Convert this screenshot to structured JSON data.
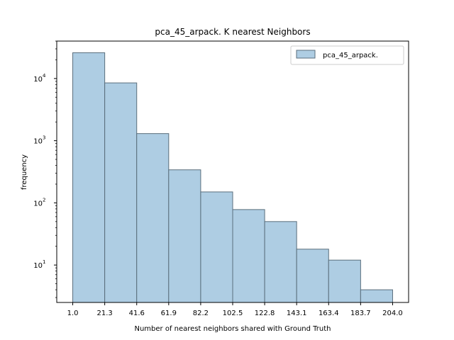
{
  "chart_data": {
    "type": "bar",
    "title": "pca_45_arpack. K nearest Neighbors",
    "xlabel": "Number of nearest neighbors shared with Ground Truth",
    "ylabel": "frequency",
    "yscale": "log",
    "ylim": [
      2.5,
      40000
    ],
    "xlim": [
      -9.15,
      214.15
    ],
    "x_ticks": [
      "1.0",
      "21.3",
      "41.6",
      "61.9",
      "82.2",
      "102.5",
      "122.8",
      "143.1",
      "163.4",
      "183.7",
      "204.0"
    ],
    "y_ticks": [
      {
        "base": "10",
        "exp": "1",
        "value": 10
      },
      {
        "base": "10",
        "exp": "2",
        "value": 100
      },
      {
        "base": "10",
        "exp": "3",
        "value": 1000
      },
      {
        "base": "10",
        "exp": "4",
        "value": 10000
      }
    ],
    "bin_edges": [
      1.0,
      21.3,
      41.6,
      61.9,
      82.2,
      102.5,
      122.8,
      143.1,
      163.4,
      183.7,
      204.0
    ],
    "values": [
      26000,
      8500,
      1300,
      340,
      150,
      78,
      50,
      18,
      12,
      4
    ],
    "series": [
      {
        "name": "pca_45_arpack.",
        "color": "#aecde3",
        "edge_color": "#5a6e7c"
      }
    ],
    "legend_position": "top-right",
    "grid": false
  }
}
